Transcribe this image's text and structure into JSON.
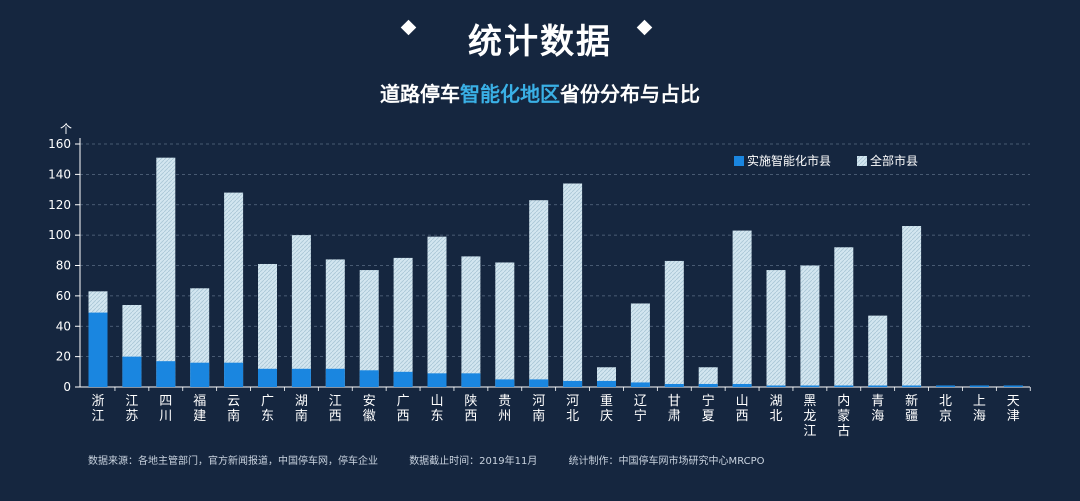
{
  "header": {
    "title": "统计数据",
    "subtitle_pre": "道路停车",
    "subtitle_highlight": "智能化地区",
    "subtitle_post": "省份分布与占比"
  },
  "footer": {
    "source": "数据来源：各地主管部门，官方新闻报道，中国停车网，停车企业",
    "cutoff": "数据截止时间：2019年11月",
    "producer": "统计制作：中国停车网市场研究中心MRCPO"
  },
  "colors": {
    "implemented": "#1a86e0",
    "all": "#d3e6f0",
    "background": "#15263f"
  },
  "chart_data": {
    "type": "bar",
    "stacked": true,
    "ylabel": "个",
    "ylim": [
      0,
      160
    ],
    "yticks": [
      0,
      20,
      40,
      60,
      80,
      100,
      120,
      140,
      160
    ],
    "grid": true,
    "legend_position": "top-right",
    "categories": [
      "浙江",
      "江苏",
      "四川",
      "福建",
      "云南",
      "广东",
      "湖南",
      "江西",
      "安徽",
      "广西",
      "山东",
      "陕西",
      "贵州",
      "河南",
      "河北",
      "重庆",
      "辽宁",
      "甘肃",
      "宁夏",
      "山西",
      "湖北",
      "黑龙江",
      "内蒙古",
      "青海",
      "新疆",
      "北京",
      "上海",
      "天津"
    ],
    "series": [
      {
        "name": "实施智能化市县",
        "values": [
          49,
          20,
          17,
          16,
          16,
          12,
          12,
          12,
          11,
          10,
          9,
          9,
          5,
          5,
          4,
          4,
          3,
          2,
          2,
          2,
          1,
          1,
          1,
          1,
          1,
          1,
          1,
          1
        ]
      },
      {
        "name": "全部市县",
        "values": [
          63,
          54,
          151,
          65,
          128,
          81,
          100,
          84,
          77,
          85,
          99,
          86,
          82,
          123,
          134,
          13,
          55,
          83,
          13,
          103,
          77,
          80,
          92,
          47,
          106,
          1,
          1,
          1
        ]
      }
    ]
  }
}
